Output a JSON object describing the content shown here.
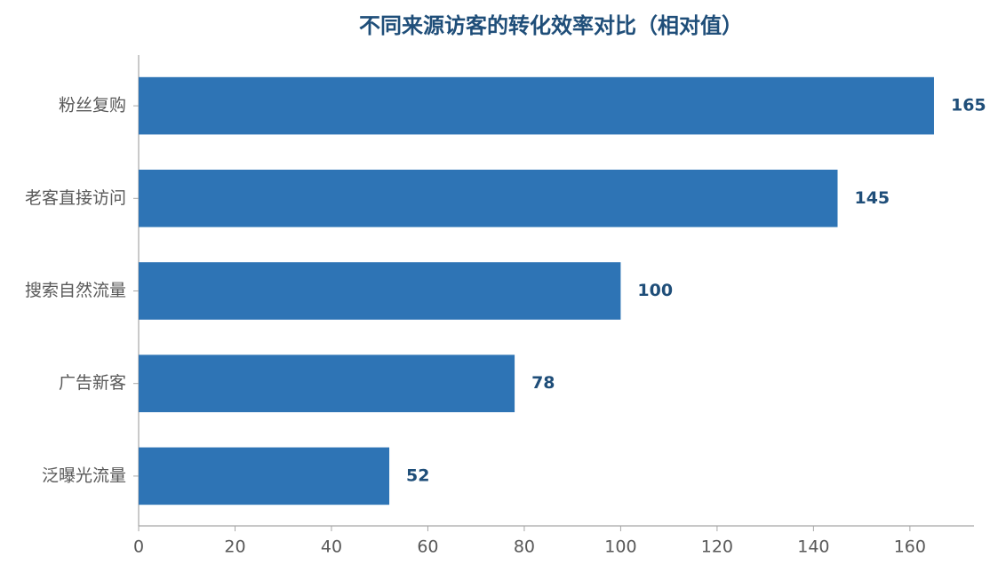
{
  "chart_data": {
    "type": "hbar",
    "title": "不同来源访客的转化效率对比（相对值）",
    "categories": [
      "粉丝复购",
      "老客直接访问",
      "搜索自然流量",
      "广告新客",
      "泛曝光流量"
    ],
    "values": [
      165,
      145,
      100,
      78,
      52
    ],
    "color": "#2e74b5",
    "xlim": [
      0,
      173.3
    ],
    "xticks": [
      0,
      20,
      40,
      60,
      80,
      100,
      120,
      140,
      160
    ],
    "grid": false
  }
}
